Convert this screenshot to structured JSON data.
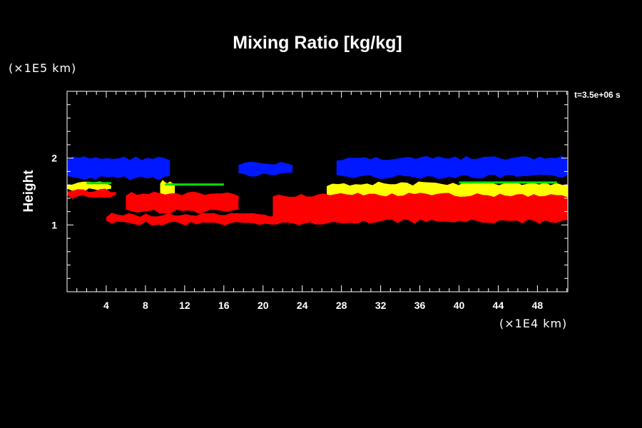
{
  "chart_data": {
    "type": "heatmap",
    "title": "Mixing Ratio [kg/kg]",
    "ylabel": "Height",
    "y_unit_label": "(×1E5 km)",
    "x_unit_label": "(×1E4 km)",
    "time_label": "t=3.5e+06 s",
    "xlim": [
      0,
      51.1
    ],
    "ylim": [
      0,
      3.0
    ],
    "x_ticks": [
      4,
      8,
      12,
      16,
      20,
      24,
      28,
      32,
      36,
      40,
      44,
      48
    ],
    "y_ticks": [
      1,
      2
    ],
    "grid": false,
    "legend": "none",
    "colors": {
      "background": "#000000",
      "axes": "#ffffff",
      "level_high": "#0018ff",
      "level_mid": "#ffff00",
      "level_low": "#ff0000",
      "level_edge": "#00e000"
    },
    "regions": [
      {
        "level": "level_high",
        "x": [
          0,
          10.5
        ],
        "y": [
          1.7,
          2.0
        ]
      },
      {
        "level": "level_high",
        "x": [
          17.5,
          23
        ],
        "y": [
          1.75,
          1.92
        ]
      },
      {
        "level": "level_high",
        "x": [
          27.5,
          51.1
        ],
        "y": [
          1.72,
          2.0
        ]
      },
      {
        "level": "level_mid",
        "x": [
          0,
          4.5
        ],
        "y": [
          1.52,
          1.62
        ]
      },
      {
        "level": "level_mid",
        "x": [
          9.5,
          11
        ],
        "y": [
          1.45,
          1.65
        ]
      },
      {
        "level": "level_mid",
        "x": [
          26.5,
          51.1
        ],
        "y": [
          1.37,
          1.62
        ]
      },
      {
        "level": "level_low",
        "x": [
          0,
          5
        ],
        "y": [
          1.42,
          1.52
        ]
      },
      {
        "level": "level_low",
        "x": [
          6,
          17.5
        ],
        "y": [
          1.2,
          1.47
        ]
      },
      {
        "level": "level_low",
        "x": [
          4,
          30
        ],
        "y": [
          1.02,
          1.15
        ]
      },
      {
        "level": "level_low",
        "x": [
          21,
          51.1
        ],
        "y": [
          1.05,
          1.45
        ]
      }
    ]
  }
}
